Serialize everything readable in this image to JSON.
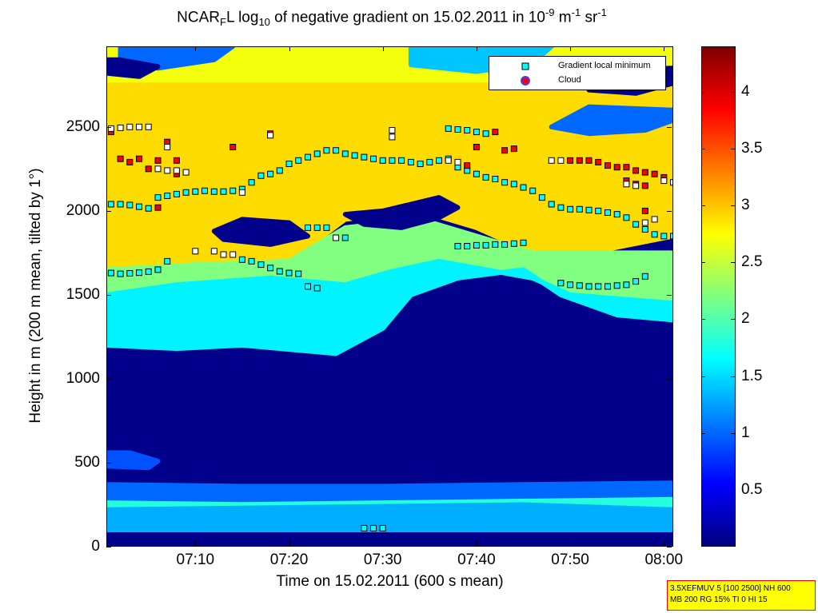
{
  "title": {
    "prefix": "NCAR",
    "sub1": "F",
    "mid": "L log",
    "sub2": "10",
    "text": " of negative gradient on 15.02.2011 in 10",
    "sup1": "-9",
    "unit1": " m",
    "sup2": "-1",
    "unit2": " sr",
    "sup3": "-1"
  },
  "axes": {
    "xlabel": "Time on 15.02.2011 (600 s mean)",
    "ylabel": "Height in m (200 m mean, tilted by 1°)",
    "xticks": [
      "07:10",
      "07:20",
      "07:30",
      "07:40",
      "07:50",
      "08:00"
    ],
    "yticks": [
      "0",
      "500",
      "1000",
      "1500",
      "2000",
      "2500"
    ]
  },
  "colorbar": {
    "ticks": [
      "0.5",
      "1",
      "1.5",
      "2",
      "2.5",
      "3",
      "3.5",
      "4"
    ]
  },
  "legend": {
    "items": [
      {
        "label": "Gradient local minimum",
        "color": "#00ffff"
      },
      {
        "label": "Cloud",
        "color": "#ff0000"
      }
    ]
  },
  "info": {
    "line1": "3.5XEFMUV 5 [100 2500] NH 600",
    "line2": "MB 200 RG 15% TI 0 HI 15"
  },
  "chart_data": {
    "type": "heatmap",
    "x_unit": "minutes after 07:00",
    "xlim": [
      0.5,
      61
    ],
    "ylim": [
      0,
      2980
    ],
    "clim": [
      0,
      4.4
    ],
    "colormap": "jet",
    "background_value": 0.05,
    "regions": [
      {
        "poly": [
          [
            0.5,
            2750
          ],
          [
            61,
            2750
          ],
          [
            61,
            2980
          ],
          [
            0.5,
            2980
          ]
        ],
        "v": 2.7
      },
      {
        "poly": [
          [
            0.5,
            1650
          ],
          [
            10,
            1680
          ],
          [
            20,
            1700
          ],
          [
            26,
            1950
          ],
          [
            34,
            2000
          ],
          [
            40,
            1900
          ],
          [
            46,
            1750
          ],
          [
            52,
            1750
          ],
          [
            61,
            1850
          ],
          [
            61,
            2750
          ],
          [
            0.5,
            2750
          ]
        ],
        "v": 2.9
      },
      {
        "poly": [
          [
            0.5,
            1500
          ],
          [
            8,
            1560
          ],
          [
            18,
            1600
          ],
          [
            26,
            1560
          ],
          [
            31,
            1640
          ],
          [
            36,
            1700
          ],
          [
            41,
            1650
          ],
          [
            46,
            1600
          ],
          [
            50,
            1500
          ],
          [
            61,
            1450
          ],
          [
            61,
            1750
          ],
          [
            52,
            1750
          ],
          [
            46,
            1750
          ],
          [
            40,
            1850
          ],
          [
            34,
            1950
          ],
          [
            26,
            1900
          ],
          [
            20,
            1700
          ],
          [
            10,
            1680
          ],
          [
            0.5,
            1650
          ]
        ],
        "v": 2.2
      },
      {
        "poly": [
          [
            0.5,
            1200
          ],
          [
            8,
            1180
          ],
          [
            15,
            1200
          ],
          [
            25,
            1150
          ],
          [
            30,
            1300
          ],
          [
            33,
            1500
          ],
          [
            38,
            1600
          ],
          [
            45,
            1650
          ],
          [
            49,
            1500
          ],
          [
            55,
            1380
          ],
          [
            61,
            1350
          ],
          [
            61,
            1450
          ],
          [
            50,
            1500
          ],
          [
            46,
            1600
          ],
          [
            41,
            1650
          ],
          [
            36,
            1700
          ],
          [
            31,
            1640
          ],
          [
            26,
            1560
          ],
          [
            18,
            1600
          ],
          [
            8,
            1560
          ],
          [
            0.5,
            1500
          ]
        ],
        "v": 1.6
      },
      {
        "poly": [
          [
            0.5,
            220
          ],
          [
            15,
            230
          ],
          [
            30,
            240
          ],
          [
            45,
            250
          ],
          [
            61,
            240
          ],
          [
            61,
            310
          ],
          [
            45,
            300
          ],
          [
            30,
            290
          ],
          [
            15,
            280
          ],
          [
            0.5,
            290
          ]
        ],
        "v": 1.8
      },
      {
        "poly": [
          [
            0.5,
            100
          ],
          [
            61,
            100
          ],
          [
            61,
            220
          ],
          [
            45,
            250
          ],
          [
            30,
            240
          ],
          [
            15,
            230
          ],
          [
            0.5,
            220
          ]
        ],
        "v": 1.3
      },
      {
        "poly": [
          [
            0.5,
            290
          ],
          [
            15,
            280
          ],
          [
            30,
            290
          ],
          [
            45,
            300
          ],
          [
            61,
            310
          ],
          [
            61,
            380
          ],
          [
            45,
            370
          ],
          [
            30,
            360
          ],
          [
            15,
            360
          ],
          [
            0.5,
            370
          ]
        ],
        "v": 1.0
      },
      {
        "poly": [
          [
            0.5,
            480
          ],
          [
            5,
            470
          ],
          [
            6,
            510
          ],
          [
            3,
            560
          ],
          [
            0.5,
            560
          ]
        ],
        "v": 0.9
      },
      {
        "poly": [
          [
            26,
            1980
          ],
          [
            30,
            2000
          ],
          [
            36,
            2080
          ],
          [
            38,
            2020
          ],
          [
            36,
            1960
          ],
          [
            32,
            1900
          ],
          [
            28,
            1920
          ]
        ],
        "v": 0.05
      },
      {
        "poly": [
          [
            13,
            1830
          ],
          [
            18,
            1800
          ],
          [
            22,
            1850
          ],
          [
            20,
            1930
          ],
          [
            15,
            1950
          ],
          [
            12,
            1880
          ]
        ],
        "v": 0.05
      },
      {
        "poly": [
          [
            2,
            2880
          ],
          [
            6,
            2850
          ],
          [
            12,
            2900
          ],
          [
            14,
            2980
          ],
          [
            2,
            2980
          ]
        ],
        "v": 1.0
      },
      {
        "poly": [
          [
            33,
            2870
          ],
          [
            40,
            2830
          ],
          [
            46,
            2880
          ],
          [
            48,
            2980
          ],
          [
            33,
            2980
          ]
        ],
        "v": 1.4
      },
      {
        "poly": [
          [
            48,
            2500
          ],
          [
            52,
            2460
          ],
          [
            58,
            2480
          ],
          [
            61,
            2540
          ],
          [
            61,
            2600
          ],
          [
            52,
            2620
          ]
        ],
        "v": 1.0
      },
      {
        "poly": [
          [
            52,
            2720
          ],
          [
            57,
            2700
          ],
          [
            61,
            2760
          ],
          [
            61,
            2850
          ],
          [
            53,
            2840
          ]
        ],
        "v": 0.05
      },
      {
        "poly": [
          [
            0.5,
            2820
          ],
          [
            4,
            2800
          ],
          [
            6,
            2860
          ],
          [
            2,
            2900
          ],
          [
            0.5,
            2900
          ]
        ],
        "v": 0.05
      }
    ],
    "series": [
      {
        "name": "Gradient local minimum (cyan)",
        "marker_color": "#00ffff",
        "points": [
          [
            1,
            1630
          ],
          [
            2,
            1625
          ],
          [
            3,
            1628
          ],
          [
            4,
            1632
          ],
          [
            5,
            1638
          ],
          [
            6,
            1650
          ],
          [
            7,
            1700
          ],
          [
            1,
            2040
          ],
          [
            2,
            2040
          ],
          [
            3,
            2035
          ],
          [
            4,
            2025
          ],
          [
            5,
            2015
          ],
          [
            6,
            2080
          ],
          [
            7,
            2090
          ],
          [
            8,
            2100
          ],
          [
            9,
            2110
          ],
          [
            10,
            2115
          ],
          [
            11,
            2120
          ],
          [
            12,
            2115
          ],
          [
            13,
            2115
          ],
          [
            14,
            2120
          ],
          [
            15,
            2130
          ],
          [
            16,
            2170
          ],
          [
            17,
            2210
          ],
          [
            18,
            2220
          ],
          [
            19,
            2240
          ],
          [
            20,
            2280
          ],
          [
            21,
            2300
          ],
          [
            22,
            2320
          ],
          [
            23,
            2340
          ],
          [
            24,
            2360
          ],
          [
            25,
            2360
          ],
          [
            26,
            2340
          ],
          [
            27,
            2330
          ],
          [
            28,
            2320
          ],
          [
            29,
            2310
          ],
          [
            30,
            2300
          ],
          [
            31,
            2300
          ],
          [
            32,
            2300
          ],
          [
            33,
            2290
          ],
          [
            34,
            2280
          ],
          [
            35,
            2290
          ],
          [
            36,
            2300
          ],
          [
            37,
            2310
          ],
          [
            38,
            2260
          ],
          [
            39,
            2240
          ],
          [
            40,
            2220
          ],
          [
            41,
            2200
          ],
          [
            42,
            2190
          ],
          [
            43,
            2170
          ],
          [
            44,
            2160
          ],
          [
            45,
            2140
          ],
          [
            46,
            2120
          ],
          [
            47,
            2080
          ],
          [
            48,
            2040
          ],
          [
            49,
            2020
          ],
          [
            50,
            2010
          ],
          [
            51,
            2010
          ],
          [
            52,
            2005
          ],
          [
            53,
            2000
          ],
          [
            54,
            1990
          ],
          [
            55,
            1980
          ],
          [
            56,
            1960
          ],
          [
            57,
            1920
          ],
          [
            58,
            1890
          ],
          [
            59,
            1860
          ],
          [
            60,
            1850
          ],
          [
            61,
            1850
          ],
          [
            37,
            2490
          ],
          [
            38,
            2485
          ],
          [
            39,
            2480
          ],
          [
            40,
            2470
          ],
          [
            41,
            2460
          ],
          [
            38,
            1790
          ],
          [
            39,
            1790
          ],
          [
            40,
            1795
          ],
          [
            41,
            1795
          ],
          [
            42,
            1800
          ],
          [
            43,
            1800
          ],
          [
            44,
            1805
          ],
          [
            45,
            1810
          ],
          [
            49,
            1570
          ],
          [
            50,
            1560
          ],
          [
            51,
            1555
          ],
          [
            52,
            1550
          ],
          [
            53,
            1550
          ],
          [
            54,
            1550
          ],
          [
            55,
            1555
          ],
          [
            56,
            1560
          ],
          [
            57,
            1580
          ],
          [
            58,
            1610
          ],
          [
            15,
            1710
          ],
          [
            16,
            1700
          ],
          [
            17,
            1680
          ],
          [
            18,
            1660
          ],
          [
            19,
            1640
          ],
          [
            20,
            1630
          ],
          [
            21,
            1625
          ],
          [
            22,
            1550
          ],
          [
            23,
            1540
          ],
          [
            22,
            1900
          ],
          [
            23,
            1900
          ],
          [
            24,
            1900
          ],
          [
            26,
            1840
          ],
          [
            28,
            110
          ],
          [
            29,
            110
          ],
          [
            30,
            110
          ]
        ]
      },
      {
        "name": "Cloud (red)",
        "marker_color": "#ff0000",
        "points": [
          [
            1,
            2470
          ],
          [
            2,
            2310
          ],
          [
            3,
            2290
          ],
          [
            4,
            2310
          ],
          [
            5,
            2250
          ],
          [
            6,
            2300
          ],
          [
            7,
            2410
          ],
          [
            8,
            2220
          ],
          [
            8,
            2300
          ],
          [
            6,
            2020
          ],
          [
            14,
            2380
          ],
          [
            18,
            2460
          ],
          [
            39,
            2270
          ],
          [
            40,
            2380
          ],
          [
            42,
            2470
          ],
          [
            43,
            2360
          ],
          [
            44,
            2370
          ],
          [
            50,
            2300
          ],
          [
            51,
            2300
          ],
          [
            52,
            2300
          ],
          [
            53,
            2290
          ],
          [
            54,
            2270
          ],
          [
            55,
            2260
          ],
          [
            56,
            2260
          ],
          [
            57,
            2240
          ],
          [
            58,
            2230
          ],
          [
            59,
            2220
          ],
          [
            60,
            2200
          ],
          [
            56,
            2180
          ],
          [
            57,
            2160
          ],
          [
            58,
            2150
          ],
          [
            58,
            2000
          ]
        ]
      },
      {
        "name": "Other local minimum (white)",
        "marker_color": "#ffffff",
        "points": [
          [
            1,
            2490
          ],
          [
            2,
            2495
          ],
          [
            3,
            2500
          ],
          [
            4,
            2500
          ],
          [
            5,
            2500
          ],
          [
            6,
            2250
          ],
          [
            7,
            2240
          ],
          [
            8,
            2240
          ],
          [
            9,
            2230
          ],
          [
            7,
            2380
          ],
          [
            15,
            2110
          ],
          [
            18,
            2450
          ],
          [
            31,
            2480
          ],
          [
            31,
            2440
          ],
          [
            37,
            2300
          ],
          [
            38,
            2290
          ],
          [
            48,
            2300
          ],
          [
            49,
            2300
          ],
          [
            56,
            2160
          ],
          [
            57,
            2150
          ],
          [
            58,
            1930
          ],
          [
            59,
            1950
          ],
          [
            60,
            2180
          ],
          [
            61,
            2170
          ],
          [
            25,
            1840
          ],
          [
            10,
            1760
          ],
          [
            12,
            1760
          ],
          [
            13,
            1740
          ],
          [
            14,
            1740
          ]
        ]
      }
    ]
  }
}
